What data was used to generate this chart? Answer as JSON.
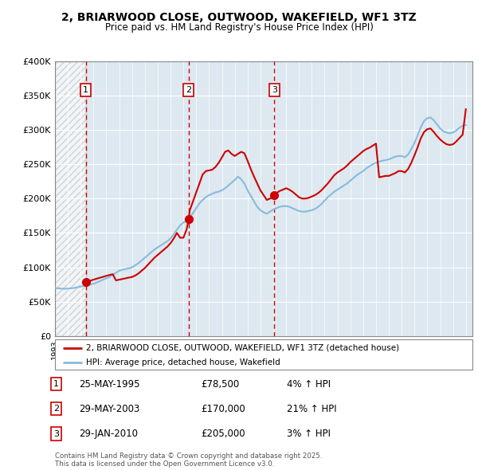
{
  "title": "2, BRIARWOOD CLOSE, OUTWOOD, WAKEFIELD, WF1 3TZ",
  "subtitle": "Price paid vs. HM Land Registry's House Price Index (HPI)",
  "ylim": [
    0,
    400000
  ],
  "yticks": [
    0,
    50000,
    100000,
    150000,
    200000,
    250000,
    300000,
    350000,
    400000
  ],
  "ytick_labels": [
    "£0",
    "£50K",
    "£100K",
    "£150K",
    "£200K",
    "£250K",
    "£300K",
    "£350K",
    "£400K"
  ],
  "xlim_start": 1993.0,
  "xlim_end": 2025.5,
  "sale_dates": [
    1995.39,
    2003.41,
    2010.08
  ],
  "sale_prices": [
    78500,
    170000,
    205000
  ],
  "sale_labels": [
    "1",
    "2",
    "3"
  ],
  "sale_info": [
    {
      "num": "1",
      "date": "25-MAY-1995",
      "price": "£78,500",
      "hpi": "4% ↑ HPI"
    },
    {
      "num": "2",
      "date": "29-MAY-2003",
      "price": "£170,000",
      "hpi": "21% ↑ HPI"
    },
    {
      "num": "3",
      "date": "29-JAN-2010",
      "price": "£205,000",
      "hpi": "3% ↑ HPI"
    }
  ],
  "legend_line1": "2, BRIARWOOD CLOSE, OUTWOOD, WAKEFIELD, WF1 3TZ (detached house)",
  "legend_line2": "HPI: Average price, detached house, Wakefield",
  "footer1": "Contains HM Land Registry data © Crown copyright and database right 2025.",
  "footer2": "This data is licensed under the Open Government Licence v3.0.",
  "red_line_color": "#cc0000",
  "blue_line_color": "#88bbdd",
  "background_color": "#dde8f0",
  "grid_color": "#ffffff",
  "marker_box_color": "#cc0000",
  "hpi_data_x": [
    1993.0,
    1993.25,
    1993.5,
    1993.75,
    1994.0,
    1994.25,
    1994.5,
    1994.75,
    1995.0,
    1995.25,
    1995.5,
    1995.75,
    1996.0,
    1996.25,
    1996.5,
    1996.75,
    1997.0,
    1997.25,
    1997.5,
    1997.75,
    1998.0,
    1998.25,
    1998.5,
    1998.75,
    1999.0,
    1999.25,
    1999.5,
    1999.75,
    2000.0,
    2000.25,
    2000.5,
    2000.75,
    2001.0,
    2001.25,
    2001.5,
    2001.75,
    2002.0,
    2002.25,
    2002.5,
    2002.75,
    2003.0,
    2003.25,
    2003.5,
    2003.75,
    2004.0,
    2004.25,
    2004.5,
    2004.75,
    2005.0,
    2005.25,
    2005.5,
    2005.75,
    2006.0,
    2006.25,
    2006.5,
    2006.75,
    2007.0,
    2007.25,
    2007.5,
    2007.75,
    2008.0,
    2008.25,
    2008.5,
    2008.75,
    2009.0,
    2009.25,
    2009.5,
    2009.75,
    2010.0,
    2010.25,
    2010.5,
    2010.75,
    2011.0,
    2011.25,
    2011.5,
    2011.75,
    2012.0,
    2012.25,
    2012.5,
    2012.75,
    2013.0,
    2013.25,
    2013.5,
    2013.75,
    2014.0,
    2014.25,
    2014.5,
    2014.75,
    2015.0,
    2015.25,
    2015.5,
    2015.75,
    2016.0,
    2016.25,
    2016.5,
    2016.75,
    2017.0,
    2017.25,
    2017.5,
    2017.75,
    2018.0,
    2018.25,
    2018.5,
    2018.75,
    2019.0,
    2019.25,
    2019.5,
    2019.75,
    2020.0,
    2020.25,
    2020.5,
    2020.75,
    2021.0,
    2021.25,
    2021.5,
    2021.75,
    2022.0,
    2022.25,
    2022.5,
    2022.75,
    2023.0,
    2023.25,
    2023.5,
    2023.75,
    2024.0,
    2024.25,
    2024.5,
    2024.75,
    2025.0
  ],
  "hpi_data_y": [
    70000,
    69500,
    69000,
    68800,
    69000,
    69500,
    70000,
    71000,
    72000,
    73000,
    74000,
    75000,
    76000,
    78000,
    80000,
    82000,
    84000,
    86000,
    89000,
    92000,
    95000,
    96500,
    97500,
    98500,
    100000,
    103000,
    106000,
    110000,
    114000,
    118000,
    122000,
    126000,
    129000,
    132000,
    135000,
    138000,
    142000,
    148000,
    155000,
    161000,
    165000,
    168000,
    173000,
    179000,
    186000,
    193000,
    198000,
    202000,
    205000,
    207000,
    209000,
    210000,
    212000,
    215000,
    219000,
    223000,
    227000,
    232000,
    228000,
    222000,
    212000,
    204000,
    196000,
    188000,
    183000,
    180000,
    178000,
    181000,
    184000,
    186000,
    188000,
    189000,
    189000,
    188000,
    186000,
    184000,
    182000,
    181000,
    181000,
    182000,
    183000,
    185000,
    188000,
    192000,
    197000,
    202000,
    206000,
    210000,
    213000,
    216000,
    219000,
    222000,
    226000,
    230000,
    234000,
    237000,
    240000,
    244000,
    247000,
    250000,
    252000,
    254000,
    255000,
    256000,
    257000,
    259000,
    261000,
    262000,
    262000,
    260000,
    264000,
    272000,
    281000,
    292000,
    304000,
    313000,
    317000,
    318000,
    314000,
    308000,
    302000,
    298000,
    296000,
    295000,
    296000,
    299000,
    303000,
    306000,
    307000
  ],
  "red_data_x": [
    1995.39,
    1995.5,
    1995.75,
    1996.0,
    1996.25,
    1996.5,
    1996.75,
    1997.0,
    1997.25,
    1997.5,
    1997.75,
    1998.0,
    1998.25,
    1998.5,
    1998.75,
    1999.0,
    1999.25,
    1999.5,
    1999.75,
    2000.0,
    2000.25,
    2000.5,
    2000.75,
    2001.0,
    2001.25,
    2001.5,
    2001.75,
    2002.0,
    2002.25,
    2002.5,
    2002.75,
    2003.0,
    2003.25,
    2003.41,
    2003.5,
    2003.75,
    2004.0,
    2004.25,
    2004.5,
    2004.75,
    2005.0,
    2005.25,
    2005.5,
    2005.75,
    2006.0,
    2006.25,
    2006.5,
    2006.75,
    2007.0,
    2007.25,
    2007.5,
    2007.75,
    2008.0,
    2008.25,
    2008.5,
    2008.75,
    2009.0,
    2009.25,
    2009.5,
    2009.75,
    2010.0,
    2010.08,
    2010.25,
    2010.5,
    2010.75,
    2011.0,
    2011.25,
    2011.5,
    2011.75,
    2012.0,
    2012.25,
    2012.5,
    2012.75,
    2013.0,
    2013.25,
    2013.5,
    2013.75,
    2014.0,
    2014.25,
    2014.5,
    2014.75,
    2015.0,
    2015.25,
    2015.5,
    2015.75,
    2016.0,
    2016.25,
    2016.5,
    2016.75,
    2017.0,
    2017.25,
    2017.5,
    2017.75,
    2018.0,
    2018.25,
    2018.5,
    2018.75,
    2019.0,
    2019.25,
    2019.5,
    2019.75,
    2020.0,
    2020.25,
    2020.5,
    2020.75,
    2021.0,
    2021.25,
    2021.5,
    2021.75,
    2022.0,
    2022.25,
    2022.5,
    2022.75,
    2023.0,
    2023.25,
    2023.5,
    2023.75,
    2024.0,
    2024.25,
    2024.5,
    2024.75,
    2025.0
  ],
  "red_data_y": [
    78500,
    79000,
    80500,
    82000,
    83500,
    84800,
    86200,
    87600,
    88800,
    90000,
    81000,
    82000,
    83000,
    84000,
    85000,
    86000,
    88000,
    91000,
    95000,
    99000,
    104000,
    109000,
    114000,
    118000,
    122000,
    126000,
    130000,
    135000,
    142000,
    150000,
    143000,
    143000,
    155000,
    170000,
    183000,
    196000,
    209000,
    222000,
    235000,
    240000,
    241000,
    242000,
    246000,
    252000,
    260000,
    268000,
    270000,
    265000,
    262000,
    265000,
    268000,
    266000,
    255000,
    243000,
    232000,
    222000,
    212000,
    205000,
    198000,
    200000,
    202000,
    205000,
    208000,
    211000,
    213000,
    215000,
    213000,
    210000,
    206000,
    202000,
    200000,
    200000,
    201000,
    203000,
    205000,
    208000,
    212000,
    217000,
    222000,
    228000,
    234000,
    238000,
    241000,
    244000,
    248000,
    253000,
    257000,
    261000,
    265000,
    269000,
    272000,
    274000,
    277000,
    280000,
    231000,
    232000,
    233000,
    233000,
    235000,
    237000,
    240000,
    240000,
    238000,
    243000,
    252000,
    263000,
    275000,
    288000,
    297000,
    301000,
    302000,
    297000,
    291000,
    286000,
    282000,
    279000,
    278000,
    279000,
    283000,
    288000,
    293000,
    330000
  ]
}
